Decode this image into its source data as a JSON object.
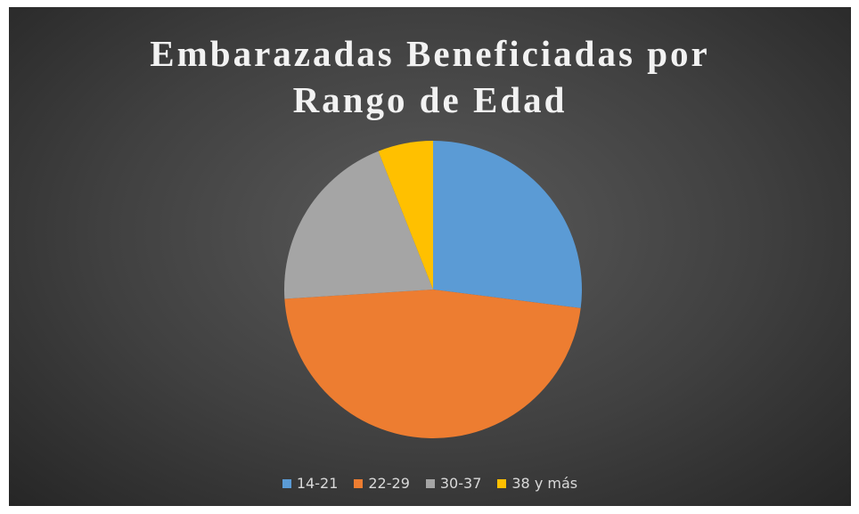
{
  "chart_data": {
    "type": "pie",
    "title": "Embarazadas Beneficiadas por Rango de Edad",
    "categories": [
      "14-21",
      "22-29",
      "30-37",
      "38 y más"
    ],
    "values": [
      27,
      47,
      20,
      6
    ],
    "colors": [
      "#5b9bd5",
      "#ed7d31",
      "#a5a5a5",
      "#ffc000"
    ],
    "legend": "bottom"
  }
}
